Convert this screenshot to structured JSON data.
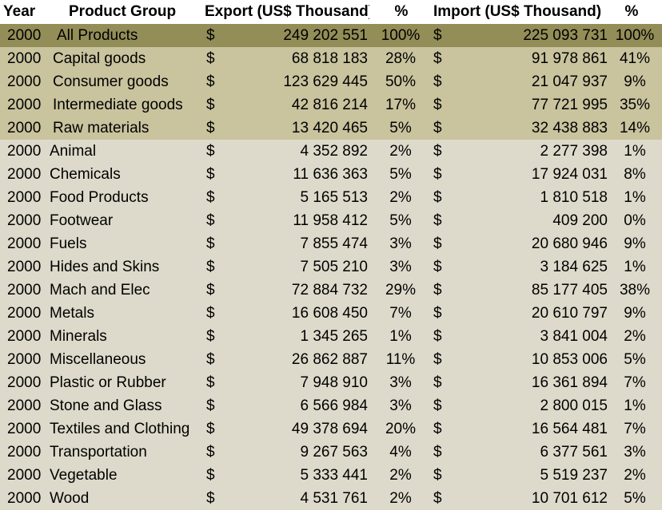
{
  "header": {
    "year": "Year",
    "product_group": "Product Group",
    "export": "Export (US$ Thousand)",
    "export_pct": "%",
    "import": "Import (US$ Thousand)",
    "import_pct": "%"
  },
  "rows": [
    {
      "kind": "total",
      "year": "2000",
      "product": "All Products",
      "cur1": "$",
      "export": "249 202 551",
      "export_pct": "100%",
      "cur2": "$",
      "import": "225 093 731",
      "import_pct": "100%"
    },
    {
      "kind": "group",
      "year": "2000",
      "product": "Capital goods",
      "cur1": "$",
      "export": "68 818 183",
      "export_pct": "28%",
      "cur2": "$",
      "import": "91 978 861",
      "import_pct": "41%"
    },
    {
      "kind": "group",
      "year": "2000",
      "product": "Consumer goods",
      "cur1": "$",
      "export": "123 629 445",
      "export_pct": "50%",
      "cur2": "$",
      "import": "21 047 937",
      "import_pct": "9%"
    },
    {
      "kind": "group",
      "year": "2000",
      "product": "Intermediate goods",
      "cur1": "$",
      "export": "42 816 214",
      "export_pct": "17%",
      "cur2": "$",
      "import": "77 721 995",
      "import_pct": "35%"
    },
    {
      "kind": "group",
      "year": "2000",
      "product": "Raw materials",
      "cur1": "$",
      "export": "13 420 465",
      "export_pct": "5%",
      "cur2": "$",
      "import": "32 438 883",
      "import_pct": "14%"
    },
    {
      "kind": "item",
      "year": "2000",
      "product": "Animal",
      "cur1": "$",
      "export": "4 352 892",
      "export_pct": "2%",
      "cur2": "$",
      "import": "2 277 398",
      "import_pct": "1%"
    },
    {
      "kind": "item",
      "year": "2000",
      "product": "Chemicals",
      "cur1": "$",
      "export": "11 636 363",
      "export_pct": "5%",
      "cur2": "$",
      "import": "17 924 031",
      "import_pct": "8%"
    },
    {
      "kind": "item",
      "year": "2000",
      "product": "Food Products",
      "cur1": "$",
      "export": "5 165 513",
      "export_pct": "2%",
      "cur2": "$",
      "import": "1 810 518",
      "import_pct": "1%"
    },
    {
      "kind": "item",
      "year": "2000",
      "product": "Footwear",
      "cur1": "$",
      "export": "11 958 412",
      "export_pct": "5%",
      "cur2": "$",
      "import": "409 200",
      "import_pct": "0%"
    },
    {
      "kind": "item",
      "year": "2000",
      "product": "Fuels",
      "cur1": "$",
      "export": "7 855 474",
      "export_pct": "3%",
      "cur2": "$",
      "import": "20 680 946",
      "import_pct": "9%"
    },
    {
      "kind": "item",
      "year": "2000",
      "product": "Hides and Skins",
      "cur1": "$",
      "export": "7 505 210",
      "export_pct": "3%",
      "cur2": "$",
      "import": "3 184 625",
      "import_pct": "1%"
    },
    {
      "kind": "item",
      "year": "2000",
      "product": "Mach and Elec",
      "cur1": "$",
      "export": "72 884 732",
      "export_pct": "29%",
      "cur2": "$",
      "import": "85 177 405",
      "import_pct": "38%"
    },
    {
      "kind": "item",
      "year": "2000",
      "product": "Metals",
      "cur1": "$",
      "export": "16 608 450",
      "export_pct": "7%",
      "cur2": "$",
      "import": "20 610 797",
      "import_pct": "9%"
    },
    {
      "kind": "item",
      "year": "2000",
      "product": "Minerals",
      "cur1": "$",
      "export": "1 345 265",
      "export_pct": "1%",
      "cur2": "$",
      "import": "3 841 004",
      "import_pct": "2%"
    },
    {
      "kind": "item",
      "year": "2000",
      "product": "Miscellaneous",
      "cur1": "$",
      "export": "26 862 887",
      "export_pct": "11%",
      "cur2": "$",
      "import": "10 853 006",
      "import_pct": "5%"
    },
    {
      "kind": "item",
      "year": "2000",
      "product": "Plastic or Rubber",
      "cur1": "$",
      "export": "7 948 910",
      "export_pct": "3%",
      "cur2": "$",
      "import": "16 361 894",
      "import_pct": "7%"
    },
    {
      "kind": "item",
      "year": "2000",
      "product": "Stone and Glass",
      "cur1": "$",
      "export": "6 566 984",
      "export_pct": "3%",
      "cur2": "$",
      "import": "2 800 015",
      "import_pct": "1%"
    },
    {
      "kind": "item",
      "year": "2000",
      "product": "Textiles and Clothing",
      "cur1": "$",
      "export": "49 378 694",
      "export_pct": "20%",
      "cur2": "$",
      "import": "16 564 481",
      "import_pct": "7%"
    },
    {
      "kind": "item",
      "year": "2000",
      "product": "Transportation",
      "cur1": "$",
      "export": "9 267 563",
      "export_pct": "4%",
      "cur2": "$",
      "import": "6 377 561",
      "import_pct": "3%"
    },
    {
      "kind": "item",
      "year": "2000",
      "product": "Vegetable",
      "cur1": "$",
      "export": "5 333 441",
      "export_pct": "2%",
      "cur2": "$",
      "import": "5 519 237",
      "import_pct": "2%"
    },
    {
      "kind": "item",
      "year": "2000",
      "product": "Wood",
      "cur1": "$",
      "export": "4 531 761",
      "export_pct": "2%",
      "cur2": "$",
      "import": "10 701 612",
      "import_pct": "5%"
    }
  ]
}
